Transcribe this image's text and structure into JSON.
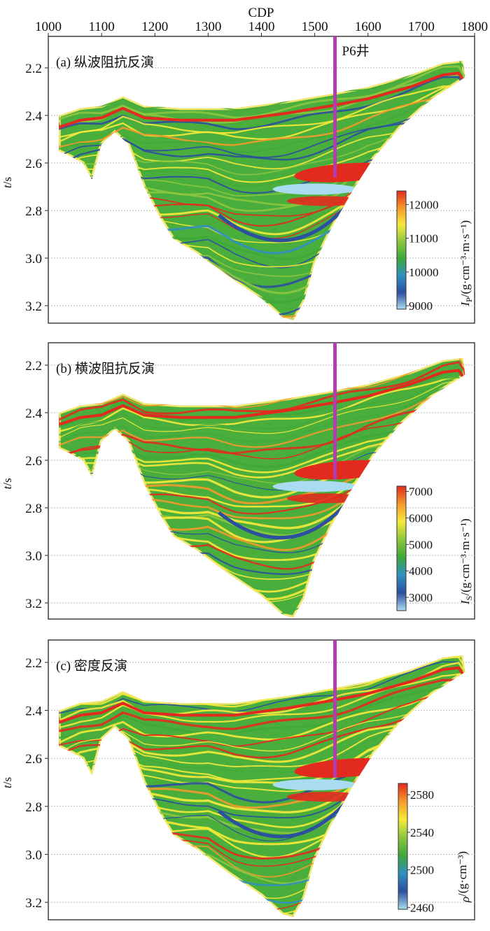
{
  "chart_data": {
    "type": "heatmap",
    "x_axis": {
      "label": "CDP",
      "ticks": [
        "1000",
        "1100",
        "1200",
        "1300",
        "1400",
        "1500",
        "1600",
        "1700",
        "1800"
      ],
      "range": [
        1000,
        1800
      ],
      "position": "top"
    },
    "y_axis": {
      "label_symbol": "t",
      "label_unit": "/s",
      "ticks": [
        "2.2",
        "2.4",
        "2.6",
        "2.8",
        "3.0",
        "3.2"
      ],
      "range": [
        2.1,
        3.27
      ]
    },
    "well": {
      "name": "P6井",
      "cdp": 1538
    },
    "section_outline": [
      [
        1020,
        2.4
      ],
      [
        1060,
        2.37
      ],
      [
        1100,
        2.36
      ],
      [
        1140,
        2.32
      ],
      [
        1180,
        2.36
      ],
      [
        1250,
        2.37
      ],
      [
        1350,
        2.37
      ],
      [
        1450,
        2.34
      ],
      [
        1530,
        2.31
      ],
      [
        1600,
        2.28
      ],
      [
        1680,
        2.23
      ],
      [
        1740,
        2.18
      ],
      [
        1778,
        2.17
      ],
      [
        1782,
        2.24
      ],
      [
        1720,
        2.33
      ],
      [
        1660,
        2.45
      ],
      [
        1610,
        2.58
      ],
      [
        1570,
        2.72
      ],
      [
        1530,
        2.88
      ],
      [
        1500,
        3.02
      ],
      [
        1480,
        3.18
      ],
      [
        1460,
        3.26
      ],
      [
        1440,
        3.25
      ],
      [
        1400,
        3.17
      ],
      [
        1340,
        3.08
      ],
      [
        1280,
        2.98
      ],
      [
        1235,
        2.92
      ],
      [
        1210,
        2.83
      ],
      [
        1180,
        2.7
      ],
      [
        1150,
        2.52
      ],
      [
        1125,
        2.47
      ],
      [
        1100,
        2.52
      ],
      [
        1082,
        2.67
      ],
      [
        1065,
        2.6
      ],
      [
        1040,
        2.57
      ],
      [
        1020,
        2.55
      ]
    ],
    "panels": [
      {
        "id": "a",
        "title": "(a) 纵波阻抗反演",
        "colorbar": {
          "symbol": "I",
          "sub": "P",
          "unit": "/(g·cm⁻³·m·s⁻¹)",
          "ticks": [
            "12000",
            "11000",
            "10000",
            "9000"
          ],
          "range": [
            8900,
            12400
          ]
        },
        "well_bottom_t": 2.66
      },
      {
        "id": "b",
        "title": "(b) 横波阻抗反演",
        "colorbar": {
          "symbol": "I",
          "sub": "S",
          "unit": "/(g·cm⁻³·m·s⁻¹)",
          "ticks": [
            "7000",
            "6000",
            "5000",
            "4000",
            "3000"
          ],
          "range": [
            2500,
            7200
          ]
        },
        "well_bottom_t": 2.68
      },
      {
        "id": "c",
        "title": "(c) 密度反演",
        "colorbar": {
          "symbol": "ρ",
          "sub": "",
          "unit": "/(g·cm⁻³)",
          "ticks": [
            "2580",
            "2540",
            "2500",
            "2460"
          ],
          "range": [
            2458,
            2592
          ]
        },
        "well_bottom_t": 2.68
      }
    ],
    "colormap": [
      "#a9dcf0",
      "#2c4f9e",
      "#2f8fc0",
      "#3ea83a",
      "#8cc63f",
      "#f6ea3a",
      "#f39a2b",
      "#e32a1f"
    ]
  }
}
